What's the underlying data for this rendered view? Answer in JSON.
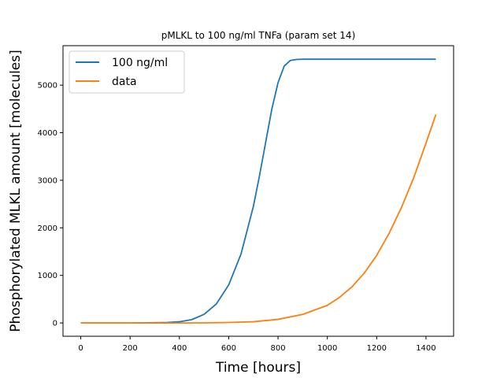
{
  "chart_data": {
    "type": "line",
    "title": "pMLKL to 100 ng/ml TNFa (param set 14)",
    "xlabel": "Time [hours]",
    "ylabel": "Phosphorylated MLKL amount [molecules]",
    "xlim": [
      -72,
      1512
    ],
    "ylim": [
      -280,
      5830
    ],
    "xticks": [
      0,
      200,
      400,
      600,
      800,
      1000,
      1200,
      1400
    ],
    "yticks": [
      0,
      1000,
      2000,
      3000,
      4000,
      5000
    ],
    "grid": false,
    "legend_position": "top-left",
    "series": [
      {
        "name": "100 ng/ml",
        "color": "#1f77b4",
        "x": [
          0,
          100,
          200,
          300,
          350,
          400,
          450,
          500,
          550,
          600,
          650,
          700,
          725,
          750,
          775,
          800,
          825,
          850,
          875,
          900,
          950,
          1000,
          1100,
          1200,
          1300,
          1440
        ],
        "y": [
          0,
          0,
          0,
          5,
          10,
          25,
          70,
          180,
          400,
          800,
          1450,
          2450,
          3100,
          3800,
          4500,
          5050,
          5400,
          5520,
          5540,
          5545,
          5545,
          5545,
          5545,
          5545,
          5545,
          5545
        ]
      },
      {
        "name": "data",
        "color": "#ff7f0e",
        "x": [
          0,
          200,
          400,
          500,
          600,
          700,
          800,
          900,
          1000,
          1050,
          1100,
          1150,
          1200,
          1250,
          1300,
          1350,
          1400,
          1440
        ],
        "y": [
          0,
          0,
          0,
          2,
          10,
          25,
          75,
          180,
          370,
          540,
          760,
          1050,
          1420,
          1880,
          2420,
          3050,
          3780,
          4380
        ]
      }
    ]
  }
}
